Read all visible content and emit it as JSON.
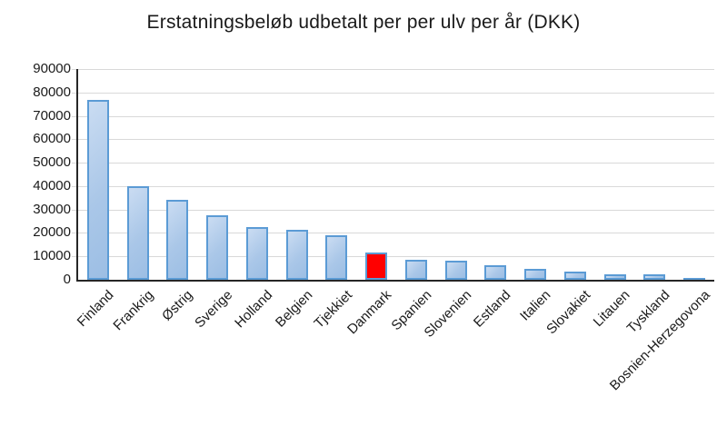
{
  "chart_data": {
    "type": "bar",
    "title": "Erstatningsbeløb udbetalt per per ulv per år (DKK)",
    "xlabel": "",
    "ylabel": "",
    "categories": [
      "Finland",
      "Frankrig",
      "Østrig",
      "Sverige",
      "Holland",
      "Belgien",
      "Tjekkiet",
      "Danmark",
      "Spanien",
      "Slovenien",
      "Estland",
      "Italien",
      "Slovakiet",
      "Litauen",
      "Tyskland",
      "Bosnien-Herzegovona"
    ],
    "values": [
      77000,
      40000,
      34000,
      27500,
      22500,
      21500,
      19000,
      11500,
      8700,
      8000,
      6300,
      4500,
      3300,
      2400,
      2400,
      300
    ],
    "highlighted_category": "Danmark",
    "ylim": [
      0,
      90000
    ],
    "ytick_interval": 10000,
    "yticks": [
      0,
      10000,
      20000,
      30000,
      40000,
      50000,
      60000,
      70000,
      80000,
      90000
    ],
    "grid": true,
    "legend": false,
    "colors": {
      "bar_fill": "#aac7e8",
      "bar_fill_light": "#cadcf2",
      "bar_border": "#5b9bd5",
      "highlight_fill": "#ff0000",
      "gridline": "#d9d9d9",
      "axis": "#262626",
      "text": "#1a1a1a",
      "background": "#ffffff"
    }
  }
}
